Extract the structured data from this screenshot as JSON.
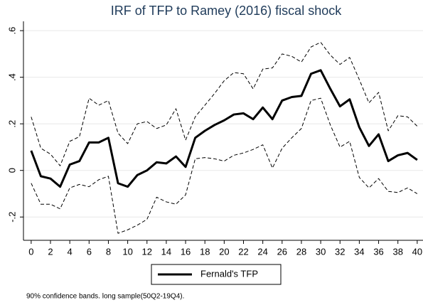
{
  "chart_data": {
    "type": "line",
    "title": "IRF of TFP to Ramey (2016) fiscal shock",
    "note": "90% confidence bands. long sample(50Q2-19Q4).",
    "x": [
      0,
      1,
      2,
      3,
      4,
      5,
      6,
      7,
      8,
      9,
      10,
      11,
      12,
      13,
      14,
      15,
      16,
      17,
      18,
      19,
      20,
      21,
      22,
      23,
      24,
      25,
      26,
      27,
      28,
      29,
      30,
      31,
      32,
      33,
      34,
      35,
      36,
      37,
      38,
      39,
      40
    ],
    "series": [
      {
        "name": "Fernald's TFP",
        "color": "#000000",
        "style": "solid",
        "width": 3,
        "values": [
          0.085,
          -0.025,
          -0.035,
          -0.07,
          0.025,
          0.04,
          0.12,
          0.12,
          0.14,
          -0.055,
          -0.07,
          -0.02,
          0.0,
          0.035,
          0.03,
          0.06,
          0.015,
          0.14,
          0.17,
          0.195,
          0.215,
          0.24,
          0.245,
          0.22,
          0.27,
          0.22,
          0.3,
          0.315,
          0.32,
          0.415,
          0.43,
          0.35,
          0.275,
          0.305,
          0.185,
          0.105,
          0.155,
          0.04,
          0.065,
          0.075,
          0.045
        ]
      },
      {
        "color": "#000000",
        "style": "dashed",
        "width": 1,
        "values": [
          0.23,
          0.095,
          0.07,
          0.02,
          0.125,
          0.145,
          0.31,
          0.28,
          0.3,
          0.16,
          0.115,
          0.2,
          0.21,
          0.18,
          0.195,
          0.265,
          0.13,
          0.23,
          0.28,
          0.33,
          0.385,
          0.42,
          0.415,
          0.35,
          0.435,
          0.44,
          0.5,
          0.49,
          0.465,
          0.53,
          0.55,
          0.495,
          0.455,
          0.485,
          0.39,
          0.29,
          0.335,
          0.17,
          0.235,
          0.23,
          0.19
        ]
      },
      {
        "color": "#000000",
        "style": "dashed",
        "width": 1,
        "values": [
          -0.055,
          -0.145,
          -0.145,
          -0.165,
          -0.075,
          -0.06,
          -0.07,
          -0.04,
          -0.025,
          -0.27,
          -0.255,
          -0.235,
          -0.21,
          -0.115,
          -0.135,
          -0.145,
          -0.105,
          0.05,
          0.055,
          0.05,
          0.04,
          0.065,
          0.075,
          0.09,
          0.11,
          0.01,
          0.095,
          0.14,
          0.18,
          0.3,
          0.31,
          0.195,
          0.1,
          0.125,
          -0.03,
          -0.075,
          -0.035,
          -0.09,
          -0.095,
          -0.075,
          -0.1
        ]
      }
    ],
    "xlim": [
      -0.8,
      40.6
    ],
    "ylim": [
      -0.3,
      0.64
    ],
    "xticks": [
      0,
      2,
      4,
      6,
      8,
      10,
      12,
      14,
      16,
      18,
      20,
      22,
      24,
      26,
      28,
      30,
      32,
      34,
      36,
      38,
      40
    ],
    "yticks": [
      {
        "value": -0.2,
        "label": "-.2"
      },
      0,
      {
        "value": 0.2,
        "label": ".2"
      },
      {
        "value": 0.4,
        "label": ".4"
      },
      {
        "value": 0.6,
        "label": ".6"
      }
    ],
    "grid": true,
    "legend": "bottom"
  }
}
